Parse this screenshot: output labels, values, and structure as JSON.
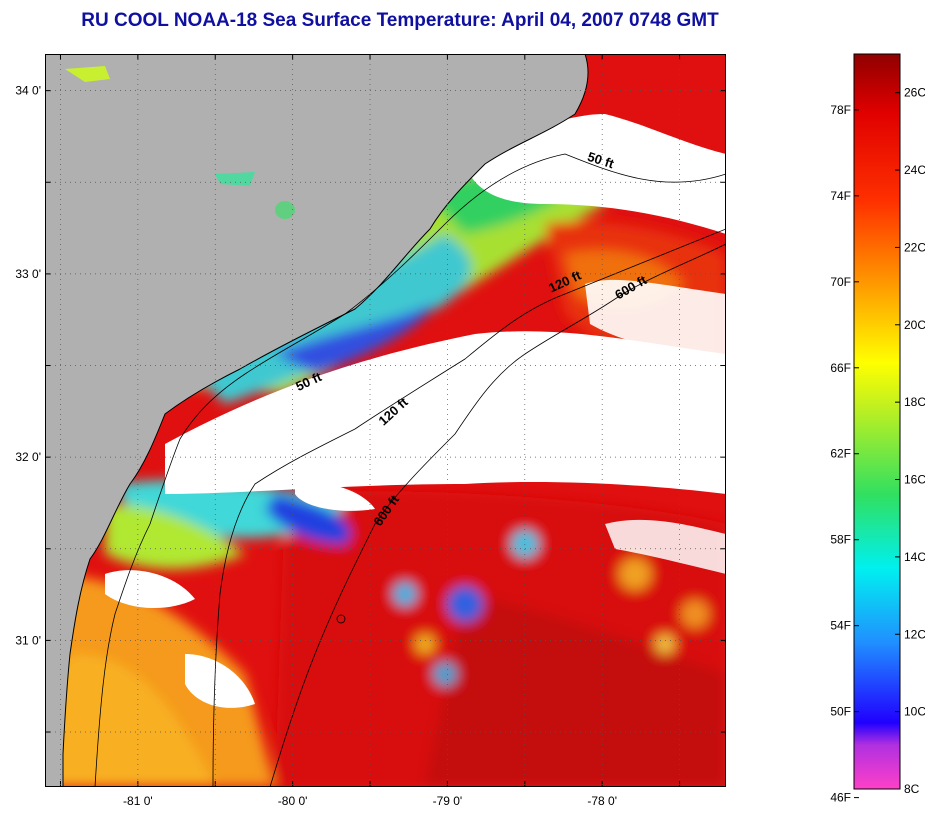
{
  "title": "RU COOL  NOAA-18  Sea Surface Temperature:  April 04, 2007 0748 GMT",
  "map": {
    "lat_ticks": [
      {
        "lat": 34.0,
        "label": "34 0'"
      },
      {
        "lat": 33.0,
        "label": "33 0'"
      },
      {
        "lat": 32.0,
        "label": "32 0'"
      },
      {
        "lat": 31.0,
        "label": "31 0'"
      }
    ],
    "lon_ticks": [
      {
        "lon": -81.0,
        "label": "-81 0'"
      },
      {
        "lon": -80.0,
        "label": "-80 0'"
      },
      {
        "lon": -79.0,
        "label": "-79 0'"
      },
      {
        "lon": -78.0,
        "label": "-78 0'"
      }
    ],
    "lat_range": [
      30.2,
      34.2
    ],
    "lon_range": [
      -81.6,
      -77.2
    ],
    "contours": [
      {
        "label": "50 ft"
      },
      {
        "label": "120 ft"
      },
      {
        "label": "600 ft"
      }
    ],
    "colors": {
      "land": "#b0b0b0",
      "cloud": "#ffffff",
      "frame": "#000000"
    }
  },
  "colorbar": {
    "fahrenheit_labels": [
      "78F",
      "74F",
      "70F",
      "66F",
      "62F",
      "58F",
      "54F",
      "50F",
      "46F"
    ],
    "celsius_labels": [
      "26C",
      "24C",
      "22C",
      "20C",
      "18C",
      "16C",
      "14C",
      "12C",
      "10C",
      "8C"
    ],
    "range_c": [
      8,
      27
    ]
  }
}
